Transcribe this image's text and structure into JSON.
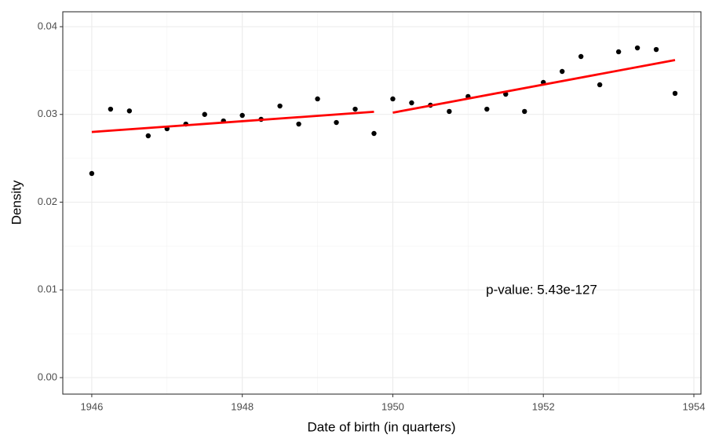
{
  "chart_data": {
    "type": "scatter",
    "xlabel": "Date of birth (in quarters)",
    "ylabel": "Density",
    "annotation": "p-value: 5.43e-127",
    "xlim": [
      1945.615,
      1954.094
    ],
    "ylim": [
      -0.00188,
      0.0417
    ],
    "xticks": [
      1946,
      1948,
      1950,
      1952,
      1954
    ],
    "yticks": [
      {
        "value": 0,
        "label": "0.00"
      },
      {
        "value": 0.01,
        "label": "0.01"
      },
      {
        "value": 0.02,
        "label": "0.02"
      },
      {
        "value": 0.03,
        "label": "0.03"
      },
      {
        "value": 0.04,
        "label": "0.04"
      }
    ],
    "xminor": [
      1947,
      1949,
      1951,
      1953
    ],
    "yminor": [
      0.005,
      0.015,
      0.025,
      0.035
    ],
    "grid": true,
    "series": [
      {
        "type": "scatter",
        "color": "#000000",
        "x": [
          1946,
          1946.25,
          1946.5,
          1946.75,
          1947,
          1947.25,
          1947.5,
          1947.75,
          1948,
          1948.25,
          1948.5,
          1948.75,
          1949,
          1949.25,
          1949.5,
          1949.75,
          1950,
          1950.25,
          1950.5,
          1950.75,
          1951,
          1951.25,
          1951.5,
          1951.75,
          1952,
          1952.25,
          1952.5,
          1952.75,
          1953,
          1953.25,
          1953.5,
          1953.75
        ],
        "values": [
          0.02327,
          0.0306,
          0.0304,
          0.02756,
          0.02837,
          0.0289,
          0.03,
          0.02926,
          0.02989,
          0.02944,
          0.03096,
          0.0289,
          0.03177,
          0.02908,
          0.0306,
          0.02783,
          0.03177,
          0.03132,
          0.03105,
          0.03034,
          0.03204,
          0.0306,
          0.0323,
          0.03034,
          0.03365,
          0.0349,
          0.0366,
          0.03338,
          0.03714,
          0.03758,
          0.0374,
          0.0324
        ]
      },
      {
        "type": "line",
        "color": "#ff0000",
        "x": [
          1946,
          1949.75
        ],
        "values": [
          0.028,
          0.0303
        ]
      },
      {
        "type": "line",
        "color": "#ff0000",
        "x": [
          1950,
          1953.75
        ],
        "values": [
          0.0302,
          0.0362
        ]
      }
    ]
  }
}
